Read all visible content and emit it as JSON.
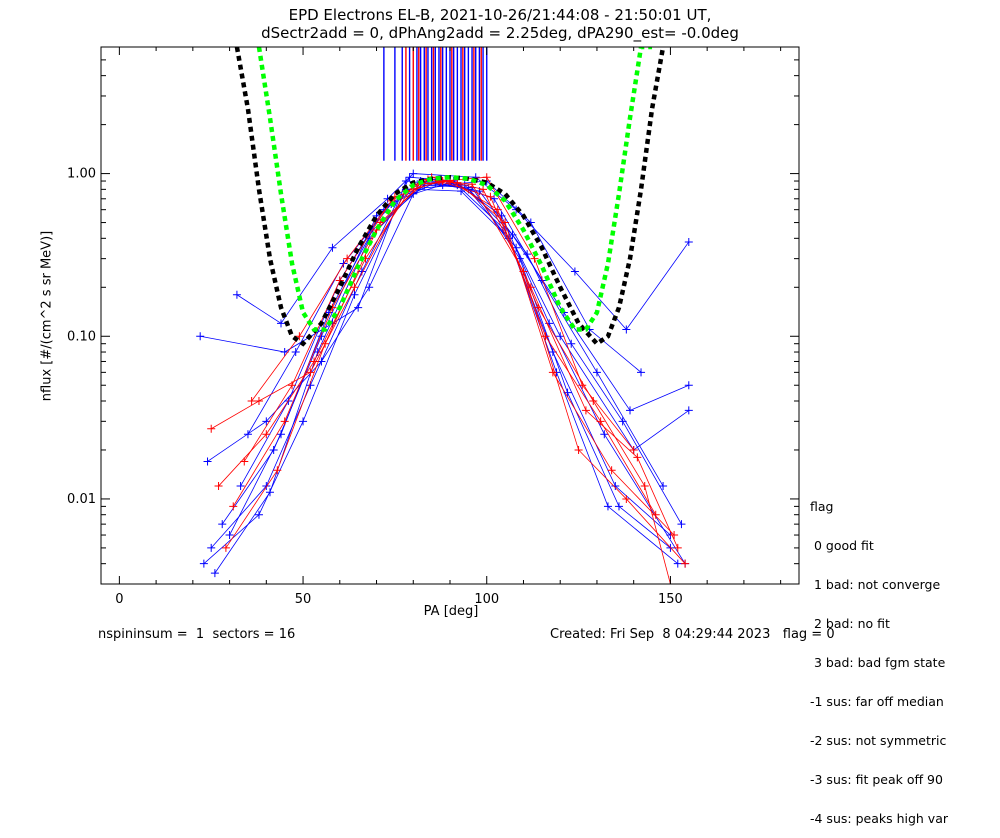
{
  "title_line1": "EPD Electrons EL-B, 2021-10-26/21:44:08 - 21:50:01 UT,",
  "title_line2": "dSectr2add = 0, dPhAng2add = 2.25deg, dPA290_est=  -0.0deg",
  "footer_left": "nspininsum =  1  sectors = 16",
  "footer_right": "Created: Fri Sep  8 04:29:44 2023   flag = 0",
  "legend": {
    "title": "flag",
    "items": [
      " 0 good fit",
      " 1 bad: not converge",
      " 2 bad: no fit",
      " 3 bad: bad fgm state",
      "-1 sus: far off median",
      "-2 sus: not symmetric",
      "-3 sus: fit peak off 90",
      "-4 sus: peaks high var"
    ]
  },
  "chart_data": {
    "type": "scatter",
    "xlabel": "PA [deg]",
    "ylabel": "nflux [#/(cm^2 s sr MeV)]",
    "xlim": [
      -5,
      185
    ],
    "ylim": [
      0.003,
      6
    ],
    "yscale": "log",
    "xticks": [
      0,
      50,
      100,
      150
    ],
    "yticks": [
      0.01,
      0.1,
      1.0
    ],
    "ytick_labels": [
      "0.01",
      "0.10",
      "1.00"
    ],
    "grid": false,
    "colors": {
      "blue": "#0000ff",
      "red": "#ff0000",
      "black_fit": "#000000",
      "green_fit": "#00ff00"
    },
    "series": [
      {
        "color": "blue",
        "points": [
          [
            22,
            0.1
          ],
          [
            45,
            0.08
          ],
          [
            58,
            0.12
          ],
          [
            65,
            0.15
          ],
          [
            78,
            0.9
          ],
          [
            88,
            0.85
          ],
          [
            100,
            0.9
          ],
          [
            112,
            0.5
          ],
          [
            128,
            0.11
          ],
          [
            142,
            0.06
          ]
        ]
      },
      {
        "color": "blue",
        "points": [
          [
            24,
            0.017
          ],
          [
            40,
            0.03
          ],
          [
            55,
            0.07
          ],
          [
            68,
            0.2
          ],
          [
            80,
            0.75
          ],
          [
            90,
            0.88
          ],
          [
            102,
            0.7
          ],
          [
            115,
            0.22
          ],
          [
            130,
            0.06
          ],
          [
            148,
            0.012
          ]
        ]
      },
      {
        "color": "blue",
        "points": [
          [
            25,
            0.005
          ],
          [
            40,
            0.012
          ],
          [
            52,
            0.05
          ],
          [
            66,
            0.25
          ],
          [
            79,
            0.95
          ],
          [
            91,
            0.9
          ],
          [
            104,
            0.55
          ],
          [
            117,
            0.12
          ],
          [
            132,
            0.025
          ],
          [
            154,
            0.004
          ]
        ]
      },
      {
        "color": "blue",
        "points": [
          [
            23,
            0.004
          ],
          [
            38,
            0.008
          ],
          [
            50,
            0.03
          ],
          [
            64,
            0.18
          ],
          [
            78,
            0.8
          ],
          [
            92,
            0.85
          ],
          [
            105,
            0.45
          ],
          [
            118,
            0.08
          ],
          [
            135,
            0.012
          ],
          [
            150,
            0.006
          ]
        ]
      },
      {
        "color": "blue",
        "points": [
          [
            28,
            0.007
          ],
          [
            42,
            0.02
          ],
          [
            55,
            0.1
          ],
          [
            70,
            0.55
          ],
          [
            82,
            0.9
          ],
          [
            95,
            0.8
          ],
          [
            108,
            0.35
          ],
          [
            120,
            0.1
          ],
          [
            140,
            0.02
          ],
          [
            155,
            0.035
          ]
        ]
      },
      {
        "color": "blue",
        "points": [
          [
            26,
            0.0035
          ],
          [
            41,
            0.011
          ],
          [
            54,
            0.08
          ],
          [
            68,
            0.4
          ],
          [
            81,
            0.8
          ],
          [
            93,
            0.78
          ],
          [
            106,
            0.4
          ],
          [
            119,
            0.06
          ],
          [
            133,
            0.009
          ],
          [
            152,
            0.004
          ]
        ]
      },
      {
        "color": "blue",
        "points": [
          [
            32,
            0.18
          ],
          [
            44,
            0.12
          ],
          [
            58,
            0.35
          ],
          [
            73,
            0.7
          ],
          [
            80,
            1.0
          ],
          [
            97,
            0.95
          ],
          [
            108,
            0.6
          ],
          [
            124,
            0.25
          ],
          [
            138,
            0.11
          ],
          [
            155,
            0.38
          ]
        ]
      },
      {
        "color": "blue",
        "points": [
          [
            30,
            0.006
          ],
          [
            44,
            0.025
          ],
          [
            57,
            0.14
          ],
          [
            69,
            0.45
          ],
          [
            83,
            0.85
          ],
          [
            96,
            0.82
          ],
          [
            109,
            0.3
          ],
          [
            122,
            0.045
          ],
          [
            136,
            0.009
          ],
          [
            150,
            0.005
          ]
        ]
      },
      {
        "color": "blue",
        "points": [
          [
            33,
            0.012
          ],
          [
            46,
            0.04
          ],
          [
            60,
            0.22
          ],
          [
            72,
            0.6
          ],
          [
            84,
            0.9
          ],
          [
            94,
            0.85
          ],
          [
            107,
            0.42
          ],
          [
            121,
            0.14
          ],
          [
            139,
            0.035
          ],
          [
            155,
            0.05
          ]
        ]
      },
      {
        "color": "blue",
        "points": [
          [
            35,
            0.025
          ],
          [
            48,
            0.08
          ],
          [
            61,
            0.28
          ],
          [
            74,
            0.65
          ],
          [
            86,
            0.88
          ],
          [
            98,
            0.78
          ],
          [
            111,
            0.32
          ],
          [
            123,
            0.09
          ],
          [
            137,
            0.03
          ],
          [
            153,
            0.007
          ]
        ]
      },
      {
        "color": "red",
        "points": [
          [
            25,
            0.027
          ],
          [
            38,
            0.04
          ],
          [
            52,
            0.06
          ],
          [
            64,
            0.2
          ],
          [
            78,
            0.78
          ],
          [
            88,
            0.9
          ],
          [
            100,
            0.95
          ],
          [
            113,
            0.3
          ],
          [
            126,
            0.05
          ],
          [
            140,
            0.02
          ]
        ]
      },
      {
        "color": "red",
        "points": [
          [
            27,
            0.012
          ],
          [
            40,
            0.025
          ],
          [
            53,
            0.07
          ],
          [
            67,
            0.3
          ],
          [
            80,
            0.85
          ],
          [
            90,
            0.9
          ],
          [
            103,
            0.6
          ],
          [
            116,
            0.1
          ],
          [
            131,
            0.03
          ],
          [
            146,
            0.008
          ]
        ]
      },
      {
        "color": "red",
        "points": [
          [
            29,
            0.005
          ],
          [
            43,
            0.015
          ],
          [
            56,
            0.09
          ],
          [
            70,
            0.45
          ],
          [
            82,
            0.87
          ],
          [
            92,
            0.88
          ],
          [
            105,
            0.5
          ],
          [
            118,
            0.06
          ],
          [
            134,
            0.015
          ],
          [
            151,
            0.006
          ]
        ]
      },
      {
        "color": "red",
        "points": [
          [
            31,
            0.009
          ],
          [
            45,
            0.03
          ],
          [
            58,
            0.15
          ],
          [
            71,
            0.5
          ],
          [
            84,
            0.92
          ],
          [
            96,
            0.86
          ],
          [
            110,
            0.25
          ],
          [
            125,
            0.02
          ],
          [
            138,
            0.01
          ],
          [
            154,
            0.004
          ]
        ]
      },
      {
        "color": "red",
        "points": [
          [
            34,
            0.017
          ],
          [
            47,
            0.05
          ],
          [
            60,
            0.22
          ],
          [
            74,
            0.68
          ],
          [
            85,
            0.95
          ],
          [
            99,
            0.8
          ],
          [
            112,
            0.2
          ],
          [
            127,
            0.035
          ],
          [
            141,
            0.018
          ],
          [
            152,
            0.005
          ]
        ]
      },
      {
        "color": "red",
        "points": [
          [
            36,
            0.04
          ],
          [
            49,
            0.1
          ],
          [
            62,
            0.3
          ],
          [
            75,
            0.72
          ],
          [
            87,
            0.9
          ],
          [
            101,
            0.72
          ],
          [
            114,
            0.15
          ],
          [
            129,
            0.04
          ],
          [
            143,
            0.012
          ],
          [
            150,
            0.003
          ]
        ]
      }
    ],
    "fit_black": {
      "color": "black_fit",
      "x": [
        32,
        35,
        38,
        41,
        44,
        47,
        50,
        55,
        60,
        65,
        70,
        75,
        80,
        85,
        90,
        95,
        100,
        105,
        110,
        115,
        120,
        125,
        130,
        133,
        136,
        139,
        142,
        145,
        148
      ],
      "y": [
        6,
        2.5,
        0.8,
        0.3,
        0.15,
        0.1,
        0.09,
        0.12,
        0.2,
        0.35,
        0.55,
        0.75,
        0.88,
        0.93,
        0.95,
        0.93,
        0.88,
        0.75,
        0.55,
        0.35,
        0.2,
        0.12,
        0.09,
        0.1,
        0.15,
        0.3,
        0.8,
        2.5,
        6
      ]
    },
    "fit_green": {
      "color": "green_fit",
      "x": [
        38,
        41,
        44,
        47,
        50,
        53,
        56,
        60,
        65,
        70,
        75,
        80,
        85,
        90,
        95,
        100,
        105,
        110,
        115,
        120,
        124,
        127,
        130,
        133,
        136,
        139,
        142,
        145
      ],
      "y": [
        6,
        2.2,
        0.75,
        0.28,
        0.14,
        0.11,
        0.11,
        0.15,
        0.27,
        0.45,
        0.68,
        0.85,
        0.93,
        0.95,
        0.93,
        0.85,
        0.68,
        0.45,
        0.27,
        0.15,
        0.11,
        0.11,
        0.14,
        0.28,
        0.75,
        2.2,
        6,
        6
      ]
    },
    "vertical_ticks": {
      "y_from": 1.2,
      "y_to": 6,
      "blue_x": [
        72,
        75,
        77,
        79,
        81,
        82,
        83,
        84,
        85,
        86,
        87,
        88,
        89,
        90,
        91,
        92,
        93,
        94,
        95,
        96,
        97,
        98,
        99,
        100
      ],
      "red_x": [
        78,
        80,
        81.5,
        83.5,
        85.5,
        87.5,
        90.5,
        93.5,
        96.5,
        98.5
      ]
    }
  }
}
